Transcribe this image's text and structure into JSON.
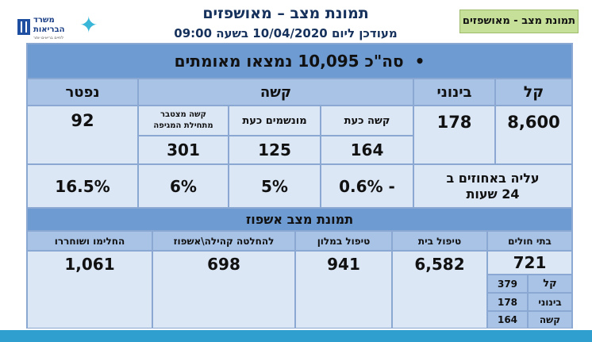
{
  "header": {
    "title": "תמונת מצב – מאושפזים",
    "subtitle": "מעודכן ליום 10/04/2020 בשעה 09:00",
    "tag": "תמונת מצב - מאושפזים"
  },
  "logo": {
    "line1": "משרד",
    "line2": "הבריאות",
    "line3": "לחיים בריאים יותר"
  },
  "summary": {
    "bullet": "•",
    "text": "סה\"כ 10,095 נמצאו מאומתים"
  },
  "severity": {
    "mild_label": "קל",
    "moderate_label": "בינוני",
    "severe_label": "קשה",
    "dead_label": "נפטר",
    "mild_value": "8,600",
    "moderate_value": "178",
    "dead_value": "92",
    "severe_now_label": "קשה כעת",
    "ventilated_label": "מונשמים כעת",
    "cumulative_label": "קשה מצטבר מתחילת המגיפה",
    "severe_now_value": "164",
    "ventilated_value": "125",
    "cumulative_value": "301",
    "rise_label": "עליה באחוזים ב 24 שעות",
    "rise_severe_now": "0.6% -",
    "rise_ventilated": "5%",
    "rise_cumulative": "6%",
    "rise_dead": "16.5%"
  },
  "hospitalization": {
    "title": "תמונת מצב אשפוז",
    "hospitals_label": "בתי חולים",
    "home_label": "טיפול בית",
    "hotel_label": "טיפול במלון",
    "community_label": "להחלטה קהילה\\אשפוז",
    "recovered_label": "החלימו ושוחררו",
    "hospitals_value": "721",
    "home_value": "6,582",
    "hotel_value": "941",
    "community_value": "698",
    "recovered_value": "1,061",
    "breakdown": [
      {
        "label": "קל",
        "value": "379"
      },
      {
        "label": "בינוני",
        "value": "178"
      },
      {
        "label": "קשה",
        "value": "164"
      }
    ]
  }
}
